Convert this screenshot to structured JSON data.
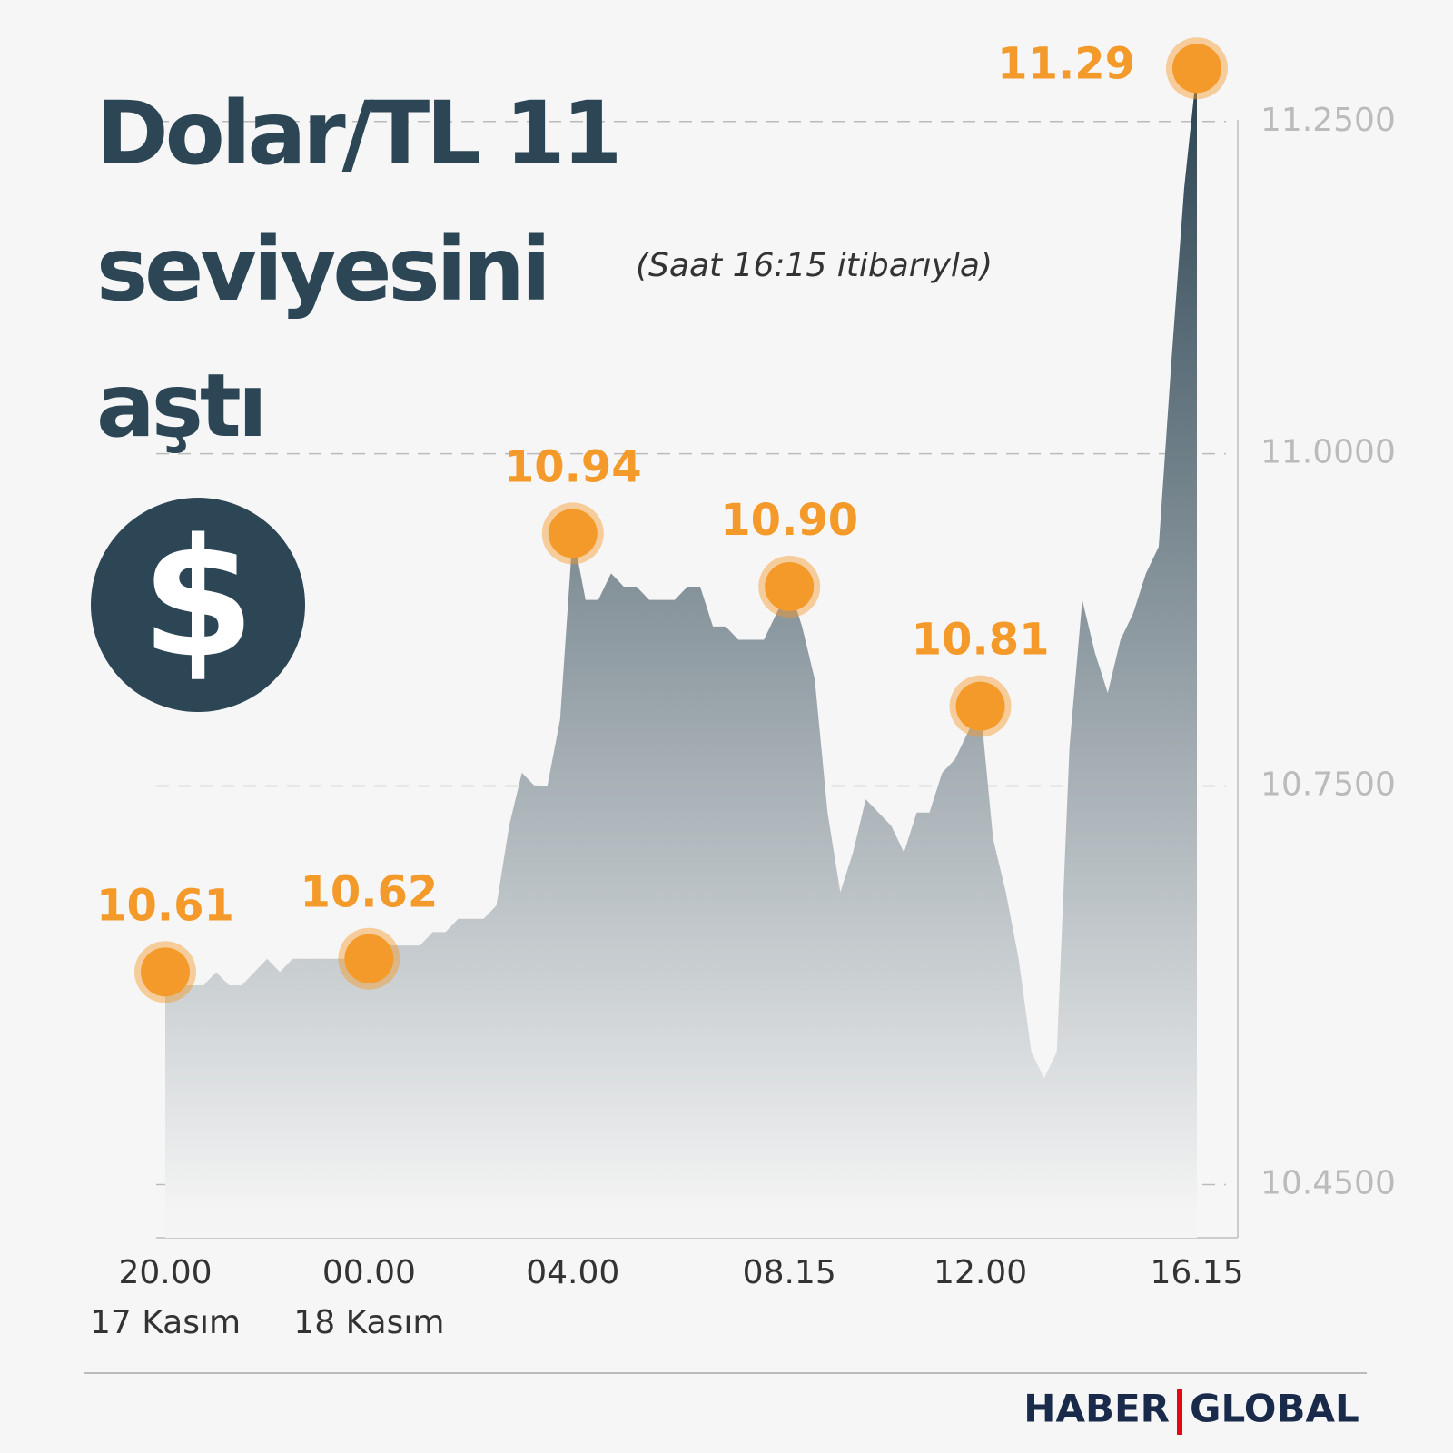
{
  "chart_data": {
    "type": "area",
    "title": "Dolar/TL 11 seviyesini aştı",
    "subtitle": "(Saat 16:15 itibarıyla)",
    "badge": "$",
    "categories": [
      "20.00",
      null,
      null,
      null,
      null,
      null,
      null,
      null,
      null,
      null,
      null,
      null,
      null,
      null,
      null,
      null,
      "00.00",
      null,
      null,
      null,
      null,
      null,
      null,
      null,
      null,
      null,
      null,
      null,
      null,
      null,
      null,
      null,
      "04.00",
      null,
      null,
      null,
      null,
      null,
      null,
      null,
      null,
      null,
      null,
      null,
      null,
      null,
      null,
      null,
      null,
      "08.15",
      null,
      null,
      null,
      null,
      null,
      null,
      null,
      null,
      null,
      null,
      null,
      null,
      null,
      null,
      "12.00",
      null,
      null,
      null,
      null,
      null,
      null,
      null,
      null,
      null,
      null,
      null,
      null,
      null,
      null,
      null,
      null,
      "16.15"
    ],
    "category_sublabels": [
      "17 Kasım",
      null,
      null,
      null,
      null,
      null,
      null,
      null,
      null,
      null,
      null,
      null,
      null,
      null,
      null,
      null,
      "18 Kasım",
      null,
      null,
      null,
      null,
      null,
      null,
      null,
      null,
      null,
      null,
      null,
      null,
      null,
      null,
      null,
      null,
      null,
      null,
      null,
      null,
      null,
      null,
      null,
      null,
      null,
      null,
      null,
      null,
      null,
      null,
      null,
      null,
      null,
      null,
      null,
      null,
      null,
      null,
      null,
      null,
      null,
      null,
      null,
      null,
      null,
      null,
      null,
      null,
      null,
      null,
      null,
      null,
      null,
      null,
      null,
      null,
      null,
      null,
      null,
      null,
      null,
      null,
      null,
      null,
      null
    ],
    "values": [
      10.61,
      10.6,
      10.6,
      10.6,
      10.61,
      10.6,
      10.6,
      10.61,
      10.62,
      10.61,
      10.62,
      10.62,
      10.62,
      10.62,
      10.62,
      10.62,
      10.62,
      10.63,
      10.63,
      10.63,
      10.63,
      10.64,
      10.64,
      10.65,
      10.65,
      10.65,
      10.66,
      10.72,
      10.76,
      10.75,
      10.75,
      10.8,
      10.94,
      10.89,
      10.89,
      10.91,
      10.9,
      10.9,
      10.89,
      10.89,
      10.89,
      10.9,
      10.9,
      10.87,
      10.87,
      10.86,
      10.86,
      10.86,
      10.88,
      10.9,
      10.87,
      10.83,
      10.73,
      10.67,
      10.7,
      10.74,
      10.73,
      10.72,
      10.7,
      10.73,
      10.73,
      10.76,
      10.77,
      10.79,
      10.81,
      10.71,
      10.67,
      10.62,
      10.55,
      10.53,
      10.55,
      10.78,
      10.89,
      10.85,
      10.82,
      10.86,
      10.88,
      10.91,
      10.93,
      11.07,
      11.2,
      11.29
    ],
    "value_labels": [
      "10.61",
      null,
      null,
      null,
      null,
      null,
      null,
      null,
      null,
      null,
      null,
      null,
      null,
      null,
      null,
      null,
      "10.62",
      null,
      null,
      null,
      null,
      null,
      null,
      null,
      null,
      null,
      null,
      null,
      null,
      null,
      null,
      null,
      "10.94",
      null,
      null,
      null,
      null,
      null,
      null,
      null,
      null,
      null,
      null,
      null,
      null,
      null,
      null,
      null,
      null,
      "10.90",
      null,
      null,
      null,
      null,
      null,
      null,
      null,
      null,
      null,
      null,
      null,
      null,
      null,
      null,
      "10.81",
      null,
      null,
      null,
      null,
      null,
      null,
      null,
      null,
      null,
      null,
      null,
      null,
      null,
      null,
      null,
      null,
      "11.29"
    ],
    "color": "#2d4553",
    "marker_color": "#f39a2b",
    "ylim": [
      10.41,
      11.31
    ],
    "yticks": [
      {
        "value": 10.45,
        "label": "10.4500"
      },
      {
        "value": 10.75,
        "label": "10.7500"
      },
      {
        "value": 11.0,
        "label": "11.0000"
      },
      {
        "value": 11.25,
        "label": "11.2500"
      }
    ],
    "grid": true
  },
  "footer": {
    "brand": [
      "HABER",
      "GLOBAL"
    ]
  }
}
